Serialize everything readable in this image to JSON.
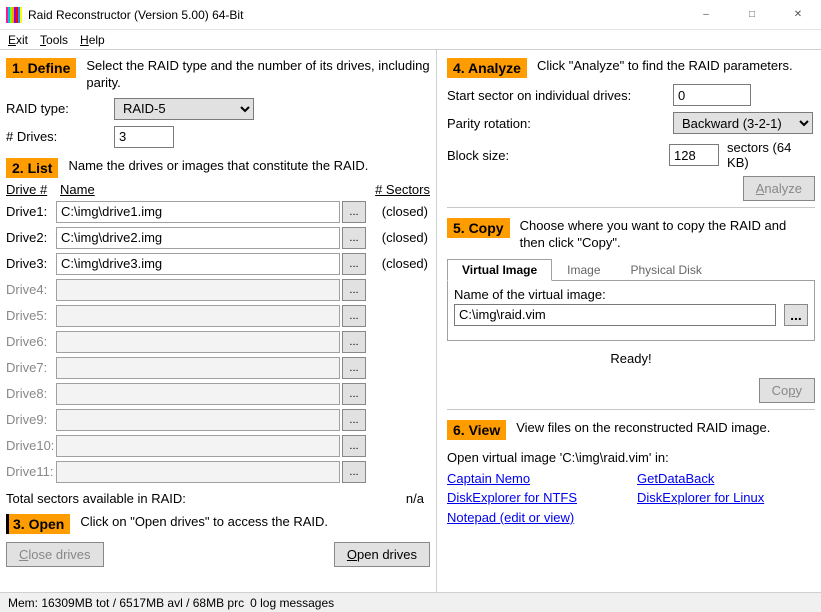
{
  "window": {
    "title": "Raid Reconstructor (Version 5.00) 64-Bit"
  },
  "menu": {
    "exit": "Exit",
    "tools": "Tools",
    "help": "Help"
  },
  "define": {
    "badge": "1. Define",
    "desc": "Select the RAID type and the number of its drives, including parity.",
    "raidtype_label": "RAID type:",
    "raidtype_value": "RAID-5",
    "numdrives_label": "# Drives:",
    "numdrives_value": "3"
  },
  "list": {
    "badge": "2. List",
    "desc": "Name the drives or images that constitute the RAID.",
    "col_drive": "Drive #",
    "col_name": "Name",
    "col_sectors": "# Sectors",
    "drives": [
      {
        "label": "Drive1:",
        "path": "C:\\img\\drive1.img",
        "status": "(closed)",
        "enabled": true
      },
      {
        "label": "Drive2:",
        "path": "C:\\img\\drive2.img",
        "status": "(closed)",
        "enabled": true
      },
      {
        "label": "Drive3:",
        "path": "C:\\img\\drive3.img",
        "status": "(closed)",
        "enabled": true
      },
      {
        "label": "Drive4:",
        "path": "",
        "status": "",
        "enabled": false
      },
      {
        "label": "Drive5:",
        "path": "",
        "status": "",
        "enabled": false
      },
      {
        "label": "Drive6:",
        "path": "",
        "status": "",
        "enabled": false
      },
      {
        "label": "Drive7:",
        "path": "",
        "status": "",
        "enabled": false
      },
      {
        "label": "Drive8:",
        "path": "",
        "status": "",
        "enabled": false
      },
      {
        "label": "Drive9:",
        "path": "",
        "status": "",
        "enabled": false
      },
      {
        "label": "Drive10:",
        "path": "",
        "status": "",
        "enabled": false
      },
      {
        "label": "Drive11:",
        "path": "",
        "status": "",
        "enabled": false
      }
    ],
    "totals_label": "Total sectors available in RAID:",
    "totals_value": "n/a"
  },
  "open": {
    "badge": "3. Open",
    "desc": "Click on \"Open drives\" to access the RAID.",
    "close_btn": "Close drives",
    "open_btn": "Open drives"
  },
  "analyze": {
    "badge": "4. Analyze",
    "desc": "Click \"Analyze\" to find the RAID parameters.",
    "start_label": "Start sector on individual drives:",
    "start_value": "0",
    "parity_label": "Parity rotation:",
    "parity_value": "Backward (3-2-1)",
    "block_label": "Block size:",
    "block_value": "128",
    "block_suffix": "sectors (64 KB)",
    "analyze_btn": "Analyze"
  },
  "copy": {
    "badge": "5. Copy",
    "desc": "Choose where you want to copy the RAID and then click \"Copy\".",
    "tab_virtual": "Virtual Image",
    "tab_image": "Image",
    "tab_physical": "Physical Disk",
    "name_label": "Name of the virtual image:",
    "name_value": "C:\\img\\raid.vim",
    "ready": "Ready!",
    "copy_btn": "Copy"
  },
  "view": {
    "badge": "6. View",
    "desc": "View files on the reconstructed RAID image.",
    "open_in": "Open virtual image 'C:\\img\\raid.vim' in:",
    "links_left": [
      "Captain Nemo",
      "DiskExplorer for NTFS",
      "Notepad (edit or view)"
    ],
    "links_right": [
      "GetDataBack",
      "DiskExplorer for Linux"
    ]
  },
  "status": {
    "mem": "Mem: 16309MB tot / 6517MB avl / 68MB prc",
    "log": "0 log messages"
  }
}
